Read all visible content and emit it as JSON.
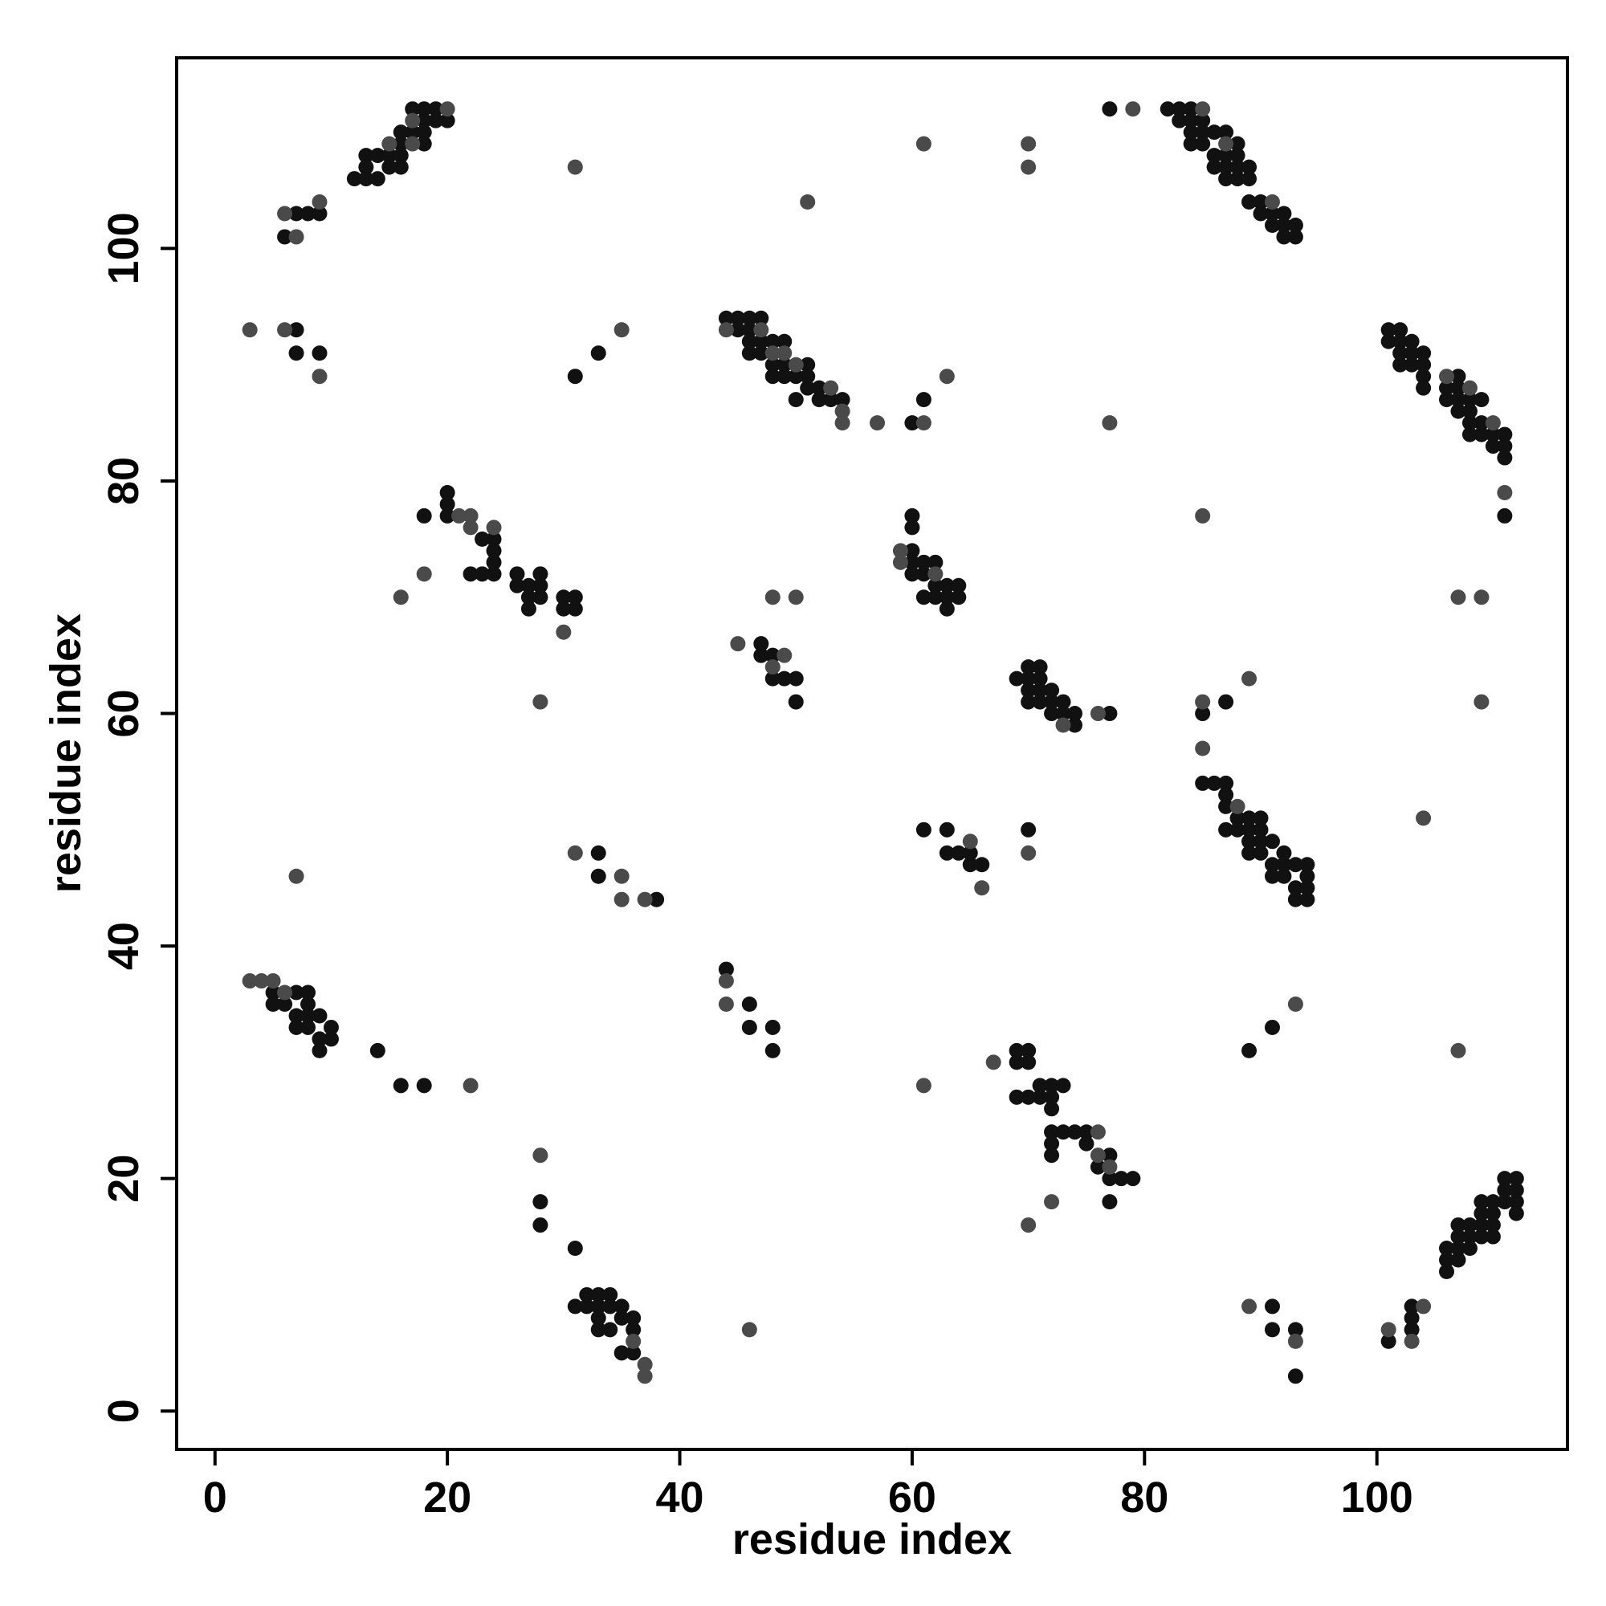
{
  "chart_data": {
    "type": "scatter",
    "x_label": "residue index",
    "y_label": "residue index",
    "xlim": [
      -3.3,
      116.4
    ],
    "ylim": [
      -3.3,
      116.4
    ],
    "xticks": [
      0,
      20,
      40,
      60,
      80,
      100
    ],
    "yticks": [
      0,
      20,
      40,
      60,
      80,
      100
    ],
    "grid": false,
    "series": [
      {
        "color": "#111111",
        "x": [
          17,
          18,
          19,
          18,
          19,
          20,
          16,
          17,
          18,
          16,
          18,
          13,
          14,
          15,
          16,
          13,
          15,
          16,
          12,
          13,
          14,
          7,
          8,
          9,
          6,
          7,
          7,
          9,
          31,
          33,
          44,
          45,
          46,
          47,
          45,
          46,
          46,
          47,
          48,
          49,
          46,
          47,
          48,
          49,
          51,
          48,
          49,
          50,
          51,
          51,
          52,
          50,
          52,
          53,
          54,
          60,
          61,
          77,
          82,
          83,
          84,
          83,
          84,
          85,
          84,
          85,
          86,
          87,
          84,
          85,
          88,
          86,
          87,
          88,
          86,
          87,
          88,
          89,
          87,
          88,
          89,
          89,
          90,
          90,
          91,
          92,
          91,
          92,
          93,
          92,
          93,
          101,
          102,
          101,
          102,
          103,
          102,
          103,
          104,
          102,
          103,
          104,
          104,
          104,
          107,
          106,
          107,
          106,
          107,
          108,
          109,
          107,
          108,
          108,
          109,
          108,
          109,
          110,
          111,
          110,
          111,
          111,
          111,
          20,
          20,
          18,
          20,
          23,
          24,
          24,
          24,
          22,
          23,
          24,
          26,
          28,
          26,
          27,
          28,
          27,
          28,
          30,
          31,
          27,
          30,
          31,
          47,
          47,
          48,
          48,
          49,
          50,
          50,
          60,
          60,
          60,
          60,
          61,
          62,
          60,
          61,
          62,
          63,
          64,
          61,
          62,
          63,
          64,
          63,
          70,
          71,
          69,
          70,
          71,
          70,
          71,
          72,
          70,
          71,
          72,
          73,
          72,
          73,
          74,
          77,
          74,
          87,
          85,
          85,
          86,
          87,
          87,
          87,
          88,
          89,
          90,
          87,
          88,
          89,
          90,
          89,
          90,
          91,
          89,
          90,
          92,
          91,
          92,
          93,
          94,
          91,
          92,
          94,
          93,
          94,
          93,
          94,
          61,
          63,
          63,
          64,
          65,
          65,
          66,
          70,
          33,
          33,
          38,
          5,
          7,
          8,
          5,
          6,
          8,
          7,
          8,
          9,
          7,
          8,
          10,
          9,
          10,
          9,
          14,
          16,
          18,
          44,
          46,
          46,
          48,
          48,
          69,
          70,
          69,
          70,
          71,
          72,
          73,
          69,
          70,
          71,
          72,
          72,
          72,
          73,
          74,
          75,
          72,
          75,
          72,
          77,
          76,
          77,
          78,
          79,
          77,
          91,
          89,
          111,
          112,
          111,
          112,
          109,
          110,
          111,
          112,
          109,
          110,
          112,
          107,
          108,
          109,
          110,
          107,
          108,
          109,
          110,
          106,
          107,
          108,
          106,
          107,
          106,
          103,
          103,
          101,
          103,
          91,
          91,
          93,
          93,
          28,
          28,
          31,
          32,
          33,
          34,
          31,
          32,
          33,
          34,
          35,
          33,
          35,
          36,
          33,
          34,
          36,
          35,
          36
        ],
        "values": [
          112,
          112,
          112,
          111,
          111,
          111,
          110,
          110,
          110,
          109,
          109,
          108,
          108,
          108,
          108,
          107,
          107,
          107,
          106,
          106,
          106,
          103,
          103,
          103,
          101,
          93,
          91,
          91,
          89,
          91,
          94,
          94,
          94,
          94,
          93,
          93,
          92,
          92,
          92,
          92,
          91,
          91,
          90,
          90,
          90,
          89,
          89,
          89,
          89,
          88,
          88,
          87,
          87,
          87,
          87,
          85,
          87,
          112,
          112,
          112,
          112,
          111,
          111,
          111,
          110,
          110,
          110,
          110,
          109,
          109,
          109,
          108,
          108,
          108,
          107,
          107,
          107,
          107,
          106,
          106,
          106,
          104,
          104,
          103,
          103,
          103,
          102,
          102,
          102,
          101,
          101,
          93,
          93,
          92,
          92,
          92,
          91,
          91,
          91,
          90,
          90,
          90,
          89,
          88,
          89,
          88,
          88,
          87,
          87,
          87,
          87,
          86,
          86,
          85,
          85,
          84,
          84,
          84,
          84,
          83,
          83,
          82,
          77,
          79,
          78,
          77,
          77,
          75,
          75,
          74,
          73,
          72,
          72,
          72,
          72,
          72,
          71,
          71,
          71,
          70,
          70,
          70,
          70,
          69,
          69,
          69,
          66,
          65,
          65,
          63,
          63,
          63,
          61,
          77,
          76,
          74,
          73,
          73,
          73,
          72,
          72,
          71,
          71,
          71,
          70,
          70,
          70,
          70,
          69,
          64,
          64,
          63,
          63,
          63,
          62,
          62,
          62,
          61,
          61,
          61,
          61,
          60,
          60,
          60,
          60,
          59,
          61,
          60,
          54,
          54,
          54,
          53,
          52,
          51,
          51,
          51,
          50,
          50,
          50,
          50,
          49,
          49,
          49,
          48,
          48,
          48,
          47,
          47,
          47,
          47,
          46,
          46,
          46,
          45,
          45,
          44,
          44,
          50,
          50,
          48,
          48,
          48,
          47,
          47,
          50,
          48,
          46,
          44,
          36,
          36,
          36,
          35,
          35,
          35,
          34,
          34,
          34,
          33,
          33,
          33,
          32,
          32,
          31,
          31,
          28,
          28,
          38,
          35,
          33,
          33,
          31,
          31,
          31,
          30,
          30,
          28,
          28,
          28,
          27,
          27,
          27,
          27,
          26,
          24,
          24,
          24,
          24,
          23,
          23,
          22,
          22,
          21,
          20,
          20,
          20,
          18,
          33,
          31,
          20,
          20,
          19,
          19,
          18,
          18,
          18,
          18,
          17,
          17,
          17,
          16,
          16,
          16,
          16,
          15,
          15,
          15,
          15,
          14,
          14,
          14,
          13,
          13,
          12,
          9,
          8,
          6,
          7,
          9,
          7,
          7,
          3,
          18,
          16,
          14,
          10,
          10,
          10,
          9,
          9,
          9,
          9,
          9,
          8,
          8,
          8,
          7,
          7,
          7,
          5,
          5
        ]
      },
      {
        "color": "#4a4a4a",
        "x": [
          20,
          17,
          15,
          17,
          9,
          6,
          7,
          31,
          3,
          6,
          9,
          35,
          44,
          47,
          48,
          49,
          50,
          53,
          54,
          54,
          57,
          61,
          63,
          51,
          61,
          70,
          70,
          77,
          79,
          85,
          87,
          91,
          106,
          108,
          110,
          111,
          21,
          22,
          22,
          24,
          18,
          16,
          30,
          28,
          48,
          50,
          45,
          49,
          48,
          59,
          59,
          62,
          76,
          73,
          85,
          85,
          88,
          89,
          85,
          104,
          107,
          109,
          109,
          65,
          66,
          70,
          31,
          35,
          35,
          37,
          7,
          3,
          4,
          5,
          6,
          22,
          44,
          44,
          67,
          76,
          76,
          77,
          70,
          61,
          93,
          107,
          89,
          93,
          101,
          103,
          104,
          28,
          37,
          37,
          36,
          46,
          72
        ],
        "values": [
          112,
          111,
          109,
          109,
          104,
          103,
          101,
          107,
          93,
          93,
          89,
          93,
          93,
          93,
          91,
          91,
          90,
          88,
          86,
          85,
          85,
          85,
          89,
          104,
          109,
          109,
          107,
          85,
          112,
          112,
          109,
          104,
          89,
          88,
          85,
          79,
          77,
          77,
          76,
          76,
          72,
          70,
          67,
          61,
          70,
          70,
          66,
          65,
          64,
          74,
          73,
          72,
          60,
          59,
          61,
          57,
          52,
          63,
          77,
          51,
          70,
          70,
          61,
          49,
          45,
          48,
          48,
          46,
          44,
          44,
          46,
          37,
          37,
          37,
          36,
          28,
          37,
          35,
          30,
          24,
          22,
          21,
          16,
          28,
          35,
          31,
          9,
          6,
          7,
          6,
          9,
          22,
          4,
          3,
          6,
          7,
          18
        ]
      }
    ]
  }
}
